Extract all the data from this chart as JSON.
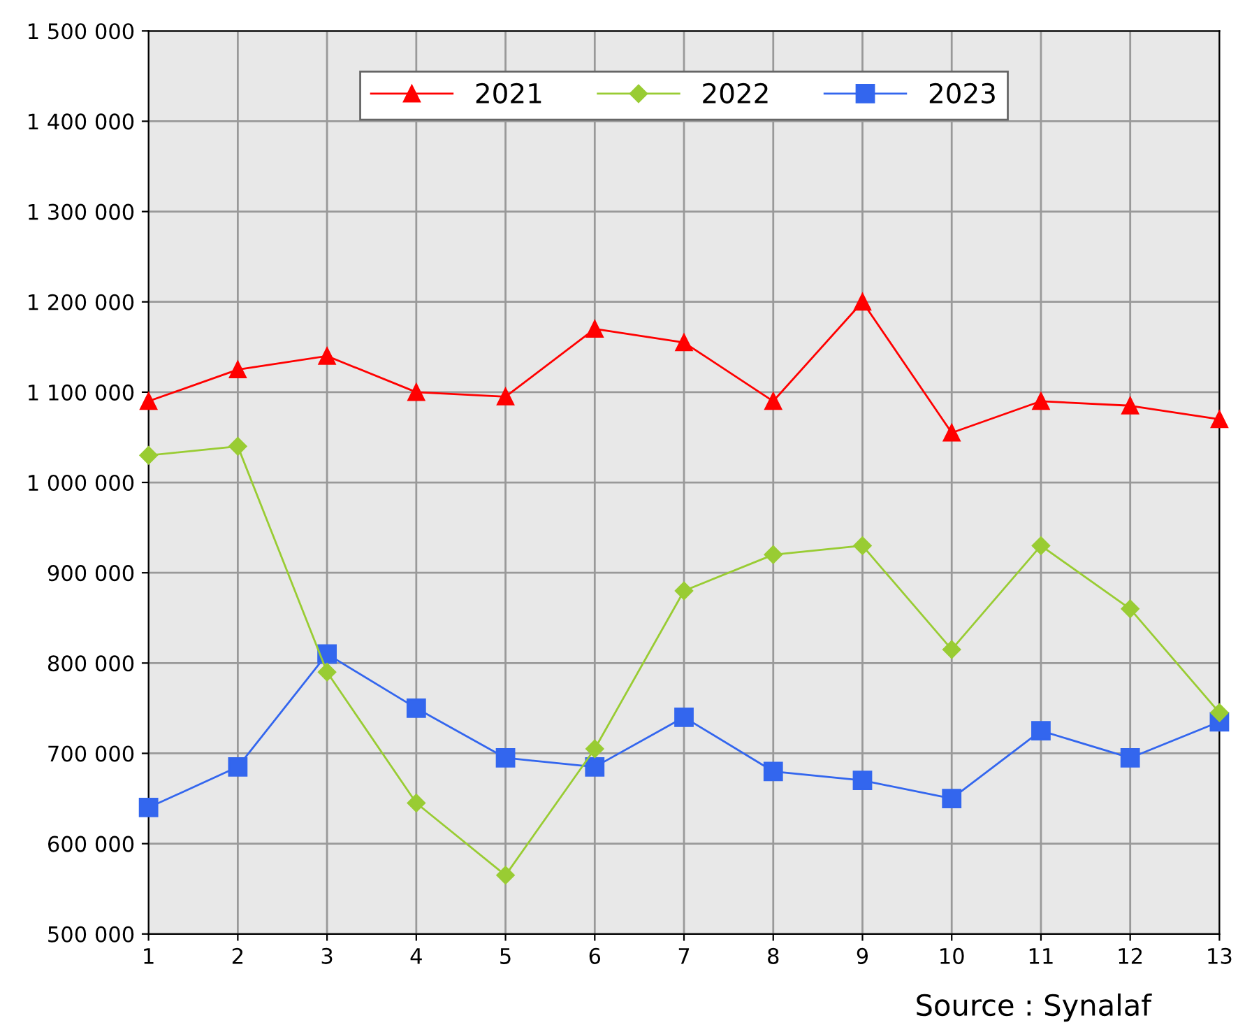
{
  "chart_data": {
    "type": "line",
    "x": [
      1,
      2,
      3,
      4,
      5,
      6,
      7,
      8,
      9,
      10,
      11,
      12,
      13
    ],
    "series": [
      {
        "name": "2021",
        "color": "#ff0000",
        "marker": "triangle",
        "values": [
          1090000,
          1125000,
          1140000,
          1100000,
          1095000,
          1170000,
          1155000,
          1090000,
          1200000,
          1055000,
          1090000,
          1085000,
          1070000
        ]
      },
      {
        "name": "2022",
        "color": "#99cc33",
        "marker": "diamond",
        "values": [
          1030000,
          1040000,
          790000,
          645000,
          565000,
          705000,
          880000,
          920000,
          930000,
          815000,
          930000,
          860000,
          745000
        ]
      },
      {
        "name": "2023",
        "color": "#3366ee",
        "marker": "square",
        "values": [
          640000,
          685000,
          810000,
          750000,
          695000,
          685000,
          740000,
          680000,
          670000,
          650000,
          725000,
          695000,
          735000
        ]
      }
    ],
    "xlim": [
      1,
      13
    ],
    "xticks": [
      1,
      2,
      3,
      4,
      5,
      6,
      7,
      8,
      9,
      10,
      11,
      12,
      13
    ],
    "ylim": [
      500000,
      1500000
    ],
    "yticks": [
      {
        "value": 500000,
        "label": "500 000"
      },
      {
        "value": 600000,
        "label": "600 000"
      },
      {
        "value": 700000,
        "label": "700 000"
      },
      {
        "value": 800000,
        "label": "800 000"
      },
      {
        "value": 900000,
        "label": "900 000"
      },
      {
        "value": 1000000,
        "label": "1 000 000"
      },
      {
        "value": 1100000,
        "label": "1 100 000"
      },
      {
        "value": 1200000,
        "label": "1 200 000"
      },
      {
        "value": 1300000,
        "label": "1 300 000"
      },
      {
        "value": 1400000,
        "label": "1 400 000"
      },
      {
        "value": 1500000,
        "label": "1 500 000"
      }
    ],
    "grid": true,
    "legend": "top",
    "line_style": "solid",
    "annotations": [
      "Source : Synalaf"
    ]
  }
}
